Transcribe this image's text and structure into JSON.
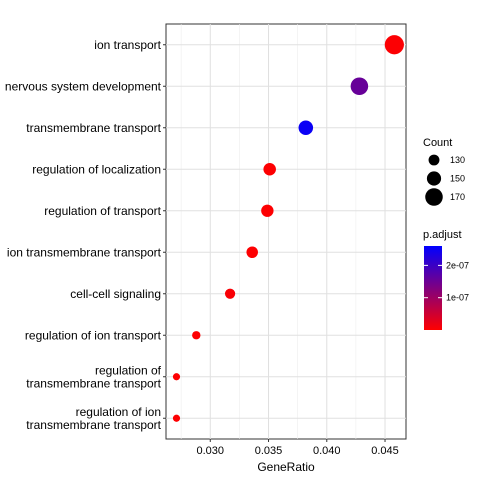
{
  "chart_data": {
    "type": "scatter",
    "xlabel": "GeneRatio",
    "xlim": [
      0.0262,
      0.0468
    ],
    "xticks": [
      0.03,
      0.035,
      0.04,
      0.045
    ],
    "xtick_labels": [
      "0.030",
      "0.035",
      "0.040",
      "0.045"
    ],
    "grid": true,
    "legend_position": "right",
    "categories": [
      "ion transport",
      "nervous system development",
      "transmembrane transport",
      "regulation of localization",
      "regulation of transport",
      "ion transmembrane transport",
      "cell-cell signaling",
      "regulation of ion transport",
      "regulation of transmembrane transport",
      "regulation of ion transmembrane transport"
    ],
    "points": [
      {
        "term": "ion transport",
        "x": 0.0458,
        "count": 180,
        "p_adjust": 3e-09
      },
      {
        "term": "nervous system development",
        "x": 0.0428,
        "count": 170,
        "p_adjust": 1.55e-07
      },
      {
        "term": "transmembrane transport",
        "x": 0.0382,
        "count": 152,
        "p_adjust": 2.5e-07
      },
      {
        "term": "regulation of localization",
        "x": 0.0351,
        "count": 140,
        "p_adjust": 2e-09
      },
      {
        "term": "regulation of transport",
        "x": 0.0349,
        "count": 139,
        "p_adjust": 2e-09
      },
      {
        "term": "ion transmembrane transport",
        "x": 0.0336,
        "count": 134,
        "p_adjust": 2e-09
      },
      {
        "term": "cell-cell signaling",
        "x": 0.0317,
        "count": 126,
        "p_adjust": 6e-09
      },
      {
        "term": "regulation of ion transport",
        "x": 0.0288,
        "count": 115,
        "p_adjust": 2e-09
      },
      {
        "term": "regulation of transmembrane transport",
        "x": 0.0271,
        "count": 108,
        "p_adjust": 2e-09
      },
      {
        "term": "regulation of ion transmembrane transport",
        "x": 0.0271,
        "count": 108,
        "p_adjust": 2e-09
      }
    ],
    "size_legend": {
      "title": "Count",
      "values": [
        130,
        150,
        170
      ]
    },
    "color_legend": {
      "title": "p.adjust",
      "domain": [
        0,
        2.6e-07
      ],
      "ticks": [
        1e-07,
        2e-07
      ],
      "tick_labels": [
        "1e-07",
        "2e-07"
      ],
      "low_color": "#ff0000",
      "high_color": "#0000ff"
    }
  }
}
